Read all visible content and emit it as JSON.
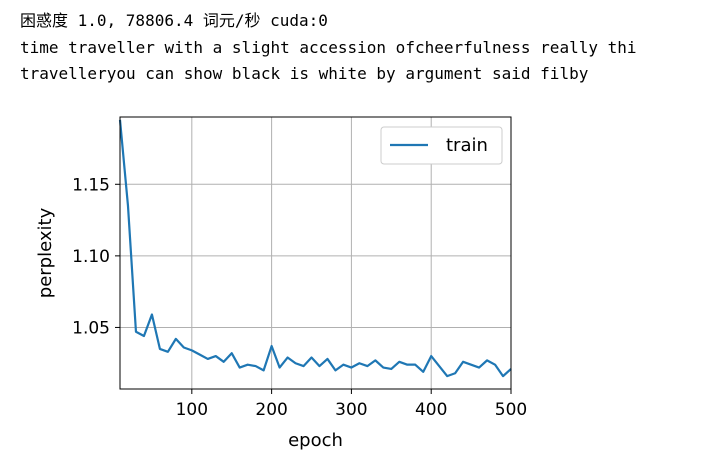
{
  "output": {
    "line1": "困惑度 1.0, 78806.4 词元/秒 cuda:0",
    "line2": "time traveller with a slight accession ofcheerfulness really thi",
    "line3": "travelleryou can show black is white by argument said filby"
  },
  "chart_data": {
    "type": "line",
    "xlabel": "epoch",
    "ylabel": "perplexity",
    "xlim": [
      10,
      500
    ],
    "ylim": [
      1.007,
      1.197
    ],
    "xticks": [
      100,
      200,
      300,
      400,
      500
    ],
    "yticks": [
      1.05,
      1.1,
      1.15
    ],
    "ytick_labels": [
      "1.05",
      "1.10",
      "1.15"
    ],
    "grid": true,
    "legend": "top-right",
    "colors": {
      "series": "#1f77b4"
    },
    "series": [
      {
        "name": "train",
        "x": [
          10,
          20,
          30,
          40,
          50,
          60,
          70,
          80,
          90,
          100,
          110,
          120,
          130,
          140,
          150,
          160,
          170,
          180,
          190,
          200,
          210,
          220,
          230,
          240,
          250,
          260,
          270,
          280,
          290,
          300,
          310,
          320,
          330,
          340,
          350,
          360,
          370,
          380,
          390,
          400,
          410,
          420,
          430,
          440,
          450,
          460,
          470,
          480,
          490,
          500
        ],
        "values": [
          1.195,
          1.135,
          1.047,
          1.044,
          1.059,
          1.035,
          1.033,
          1.042,
          1.036,
          1.034,
          1.031,
          1.028,
          1.03,
          1.026,
          1.032,
          1.022,
          1.024,
          1.023,
          1.02,
          1.037,
          1.022,
          1.029,
          1.025,
          1.023,
          1.029,
          1.023,
          1.028,
          1.02,
          1.024,
          1.022,
          1.025,
          1.023,
          1.027,
          1.022,
          1.021,
          1.026,
          1.024,
          1.024,
          1.019,
          1.03,
          1.023,
          1.016,
          1.018,
          1.026,
          1.024,
          1.022,
          1.027,
          1.024,
          1.016,
          1.021
        ]
      }
    ]
  }
}
